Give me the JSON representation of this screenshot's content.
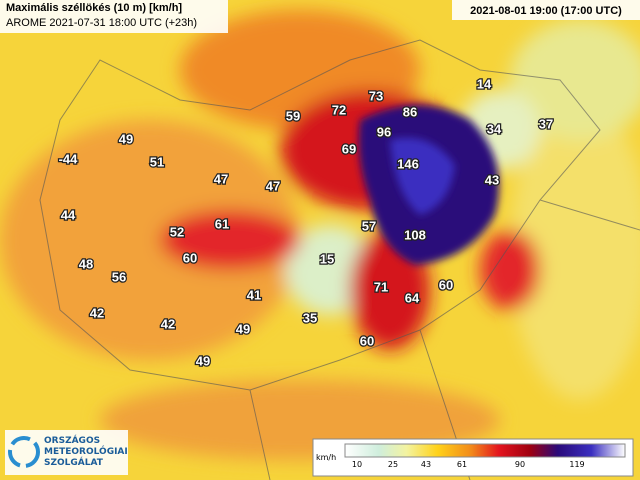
{
  "header": {
    "title": "Maximális széllökés (10 m) [km/h]",
    "subtitle": "AROME 2021-07-31 18:00 UTC (+23h)",
    "valid_time": "2021-08-01 19:00 (17:00 UTC)"
  },
  "labels": [
    73,
    86,
    14,
    59,
    72,
    96,
    34,
    37,
    49,
    69,
    146,
    51,
    -44,
    47,
    47,
    43,
    44,
    61,
    57,
    52,
    108,
    60,
    15,
    48,
    56,
    71,
    64,
    60,
    41,
    42,
    42,
    35,
    49,
    60,
    49
  ],
  "legend": {
    "unit": "km/h",
    "ticks": [
      10,
      25,
      43,
      61,
      90,
      119
    ]
  },
  "logo": {
    "line1": "ORSZÁGOS",
    "line2": "METEOROLÓGIAI",
    "line3": "SZOLGÁLAT"
  }
}
